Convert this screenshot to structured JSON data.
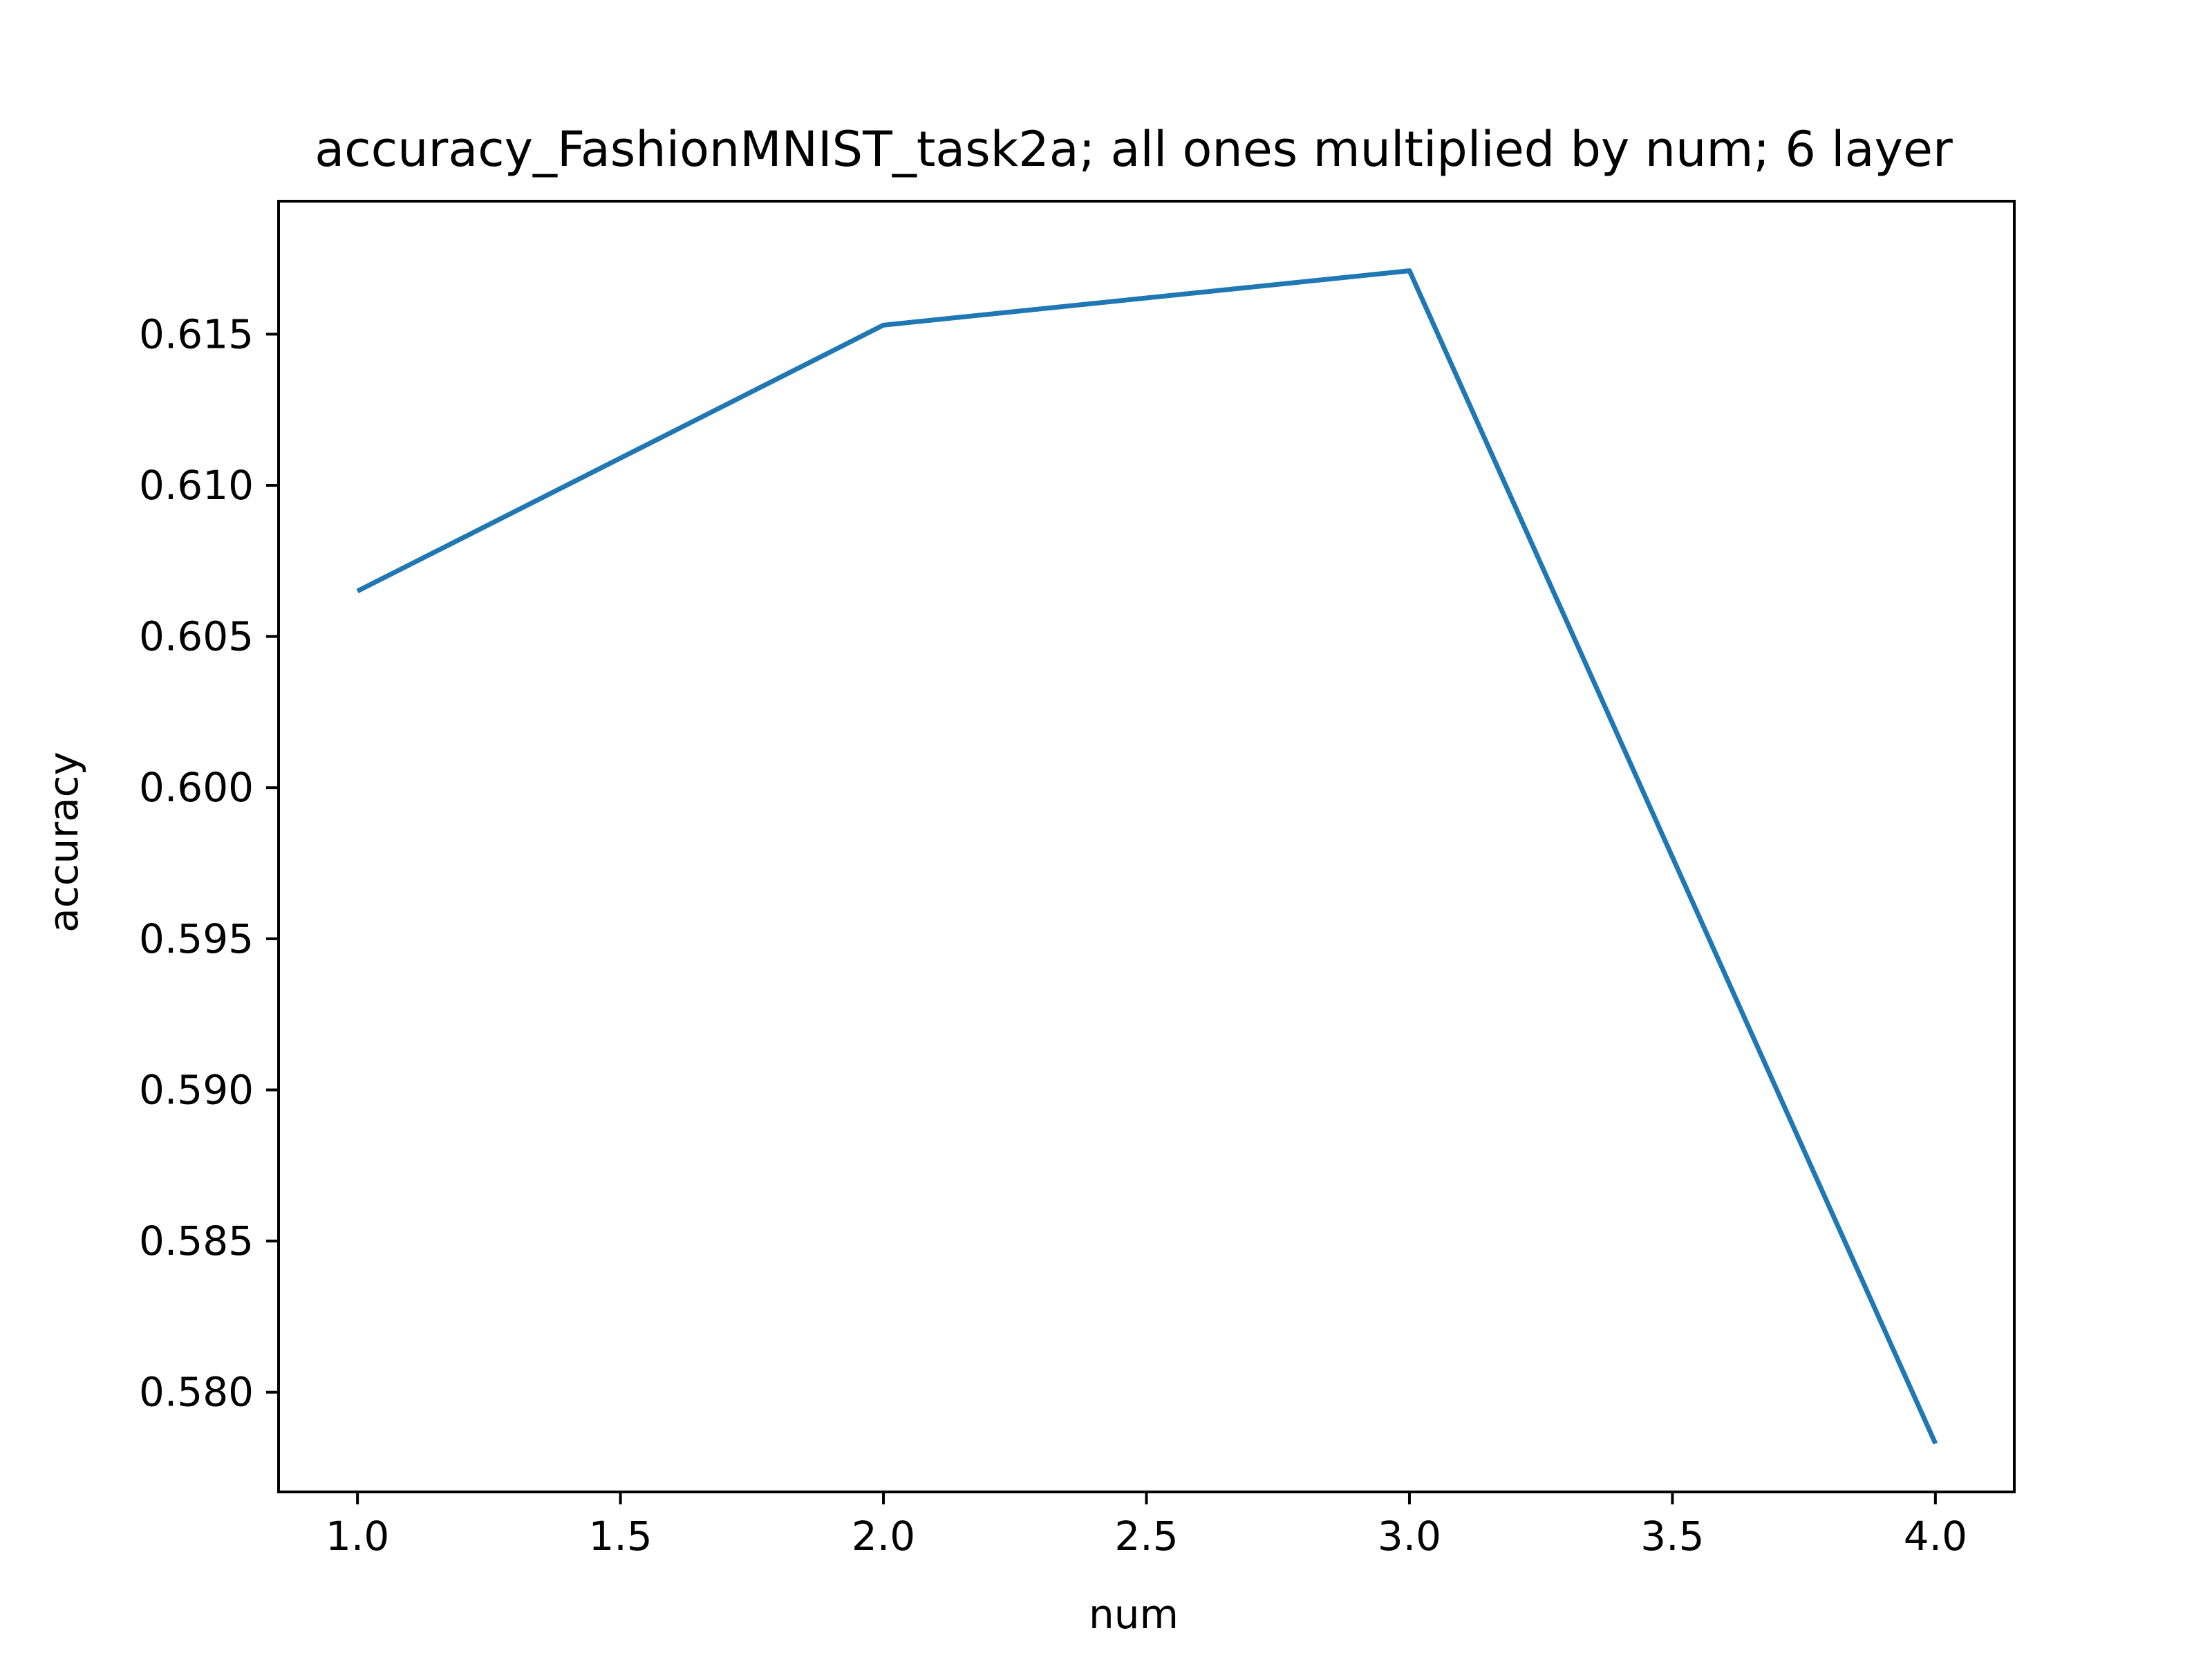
{
  "chart_data": {
    "type": "line",
    "title": "accuracy_FashionMNIST_task2a; all ones multiplied by num; 6 layer",
    "xlabel": "num",
    "ylabel": "accuracy",
    "x": [
      1.0,
      2.0,
      3.0,
      4.0
    ],
    "series": [
      {
        "values": [
          0.6065,
          0.6153,
          0.6171,
          0.5783
        ],
        "color": "#1f77b4"
      }
    ],
    "xlim": [
      0.85,
      4.15
    ],
    "ylim": [
      0.5767,
      0.6194
    ],
    "x_ticks": [
      1.0,
      1.5,
      2.0,
      2.5,
      3.0,
      3.5,
      4.0
    ],
    "x_tick_labels": [
      "1.0",
      "1.5",
      "2.0",
      "2.5",
      "3.0",
      "3.5",
      "4.0"
    ],
    "y_ticks": [
      0.58,
      0.585,
      0.59,
      0.595,
      0.6,
      0.605,
      0.61,
      0.615
    ],
    "y_tick_labels": [
      "0.580",
      "0.585",
      "0.590",
      "0.595",
      "0.600",
      "0.605",
      "0.610",
      "0.615"
    ],
    "grid": false,
    "legend": "none"
  }
}
